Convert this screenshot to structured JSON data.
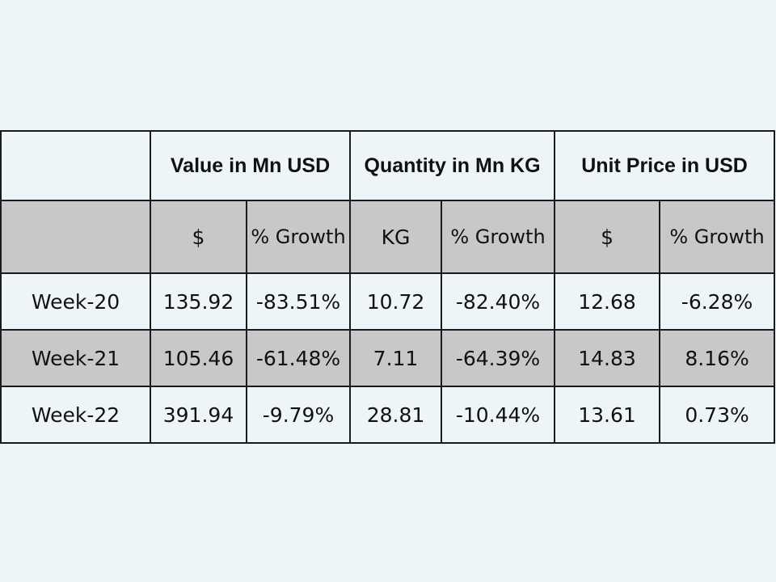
{
  "table": {
    "group_headers": [
      "",
      "Value in Mn USD",
      "Quantity in Mn KG",
      "Unit Price in USD"
    ],
    "sub_headers": [
      "",
      "$",
      "% Growth",
      "KG",
      "% Growth",
      "$",
      "% Growth"
    ],
    "rows": [
      {
        "label": "Week-20",
        "cells": [
          "135.92",
          "-83.51%",
          "10.72",
          "-82.40%",
          "12.68",
          "-6.28%"
        ]
      },
      {
        "label": "Week-21",
        "cells": [
          "105.46",
          "-61.48%",
          "7.11",
          "-64.39%",
          "14.83",
          "8.16%"
        ]
      },
      {
        "label": "Week-22",
        "cells": [
          "391.94",
          "-9.79%",
          "28.81",
          "-10.44%",
          "13.61",
          "0.73%"
        ]
      }
    ]
  },
  "colors": {
    "background": "#eef5f9",
    "shaded_row": "#c8c8c8",
    "border": "#1a1a1a"
  }
}
